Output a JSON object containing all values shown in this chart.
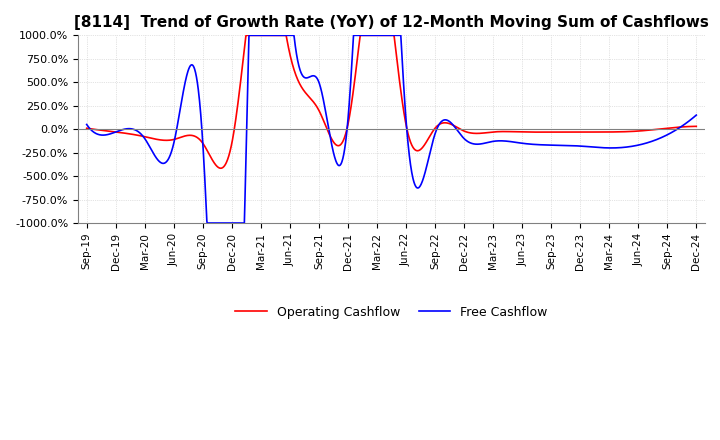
{
  "title": "[8114]  Trend of Growth Rate (YoY) of 12-Month Moving Sum of Cashflows",
  "title_fontsize": 11,
  "ylim": [
    -1000,
    1000
  ],
  "yticks": [
    -1000,
    -750,
    -500,
    -250,
    0,
    250,
    500,
    750,
    1000
  ],
  "yticklabels": [
    "-1000.0%",
    "-750.0%",
    "-500.0%",
    "-250.0%",
    "0.0%",
    "250.0%",
    "500.0%",
    "750.0%",
    "1000.0%"
  ],
  "background_color": "#ffffff",
  "grid_color": "#c8c8c8",
  "operating_color": "#ff0000",
  "free_color": "#0000ff",
  "legend_labels": [
    "Operating Cashflow",
    "Free Cashflow"
  ],
  "x_labels": [
    "Sep-19",
    "Dec-19",
    "Mar-20",
    "Jun-20",
    "Sep-20",
    "Dec-20",
    "Mar-21",
    "Jun-21",
    "Sep-21",
    "Dec-21",
    "Mar-22",
    "Jun-22",
    "Sep-22",
    "Dec-22",
    "Mar-23",
    "Jun-23",
    "Sep-23",
    "Dec-23",
    "Mar-24",
    "Jun-24",
    "Sep-24",
    "Dec-24"
  ],
  "operating_cashflow": [
    10,
    -30,
    -80,
    -110,
    -150,
    -150,
    2000,
    800,
    200,
    50,
    2000,
    50,
    10,
    -20,
    -30,
    -30,
    -30,
    -30,
    -30,
    -20,
    10,
    30
  ],
  "free_cashflow": [
    50,
    -30,
    -100,
    -150,
    -150,
    -5000,
    5000,
    1500,
    500,
    100,
    5000,
    100,
    -50,
    -100,
    -130,
    -150,
    -170,
    -180,
    -200,
    -170,
    -60,
    150
  ]
}
